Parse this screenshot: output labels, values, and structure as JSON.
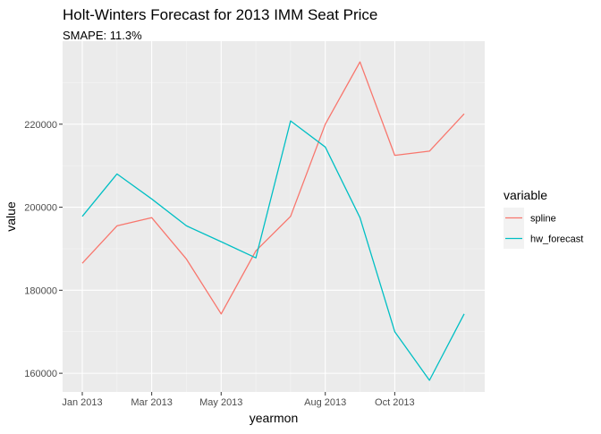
{
  "chart_data": {
    "type": "line",
    "title": "Holt-Winters Forecast for 2013 IMM Seat Price",
    "subtitle": "SMAPE: 11.3%",
    "xlabel": "yearmon",
    "ylabel": "value",
    "x": [
      "Jan 2013",
      "Feb 2013",
      "Mar 2013",
      "Apr 2013",
      "May 2013",
      "Jun 2013",
      "Jul 2013",
      "Aug 2013",
      "Sep 2013",
      "Oct 2013",
      "Nov 2013",
      "Dec 2013"
    ],
    "x_tick_labels": [
      "Jan 2013",
      "Mar 2013",
      "May 2013",
      "Aug 2013",
      "Oct 2013"
    ],
    "y_ticks": [
      160000,
      180000,
      200000,
      220000
    ],
    "y_tick_labels": [
      "160000",
      "180000",
      "200000",
      "220000"
    ],
    "ylim": [
      155500,
      240000
    ],
    "grid": true,
    "legend_title": "variable",
    "legend_position": "right",
    "series": [
      {
        "name": "spline",
        "color": "#F8766D",
        "values": [
          186500,
          195500,
          197500,
          187500,
          174300,
          189500,
          197800,
          220000,
          235000,
          212500,
          213500,
          222500
        ]
      },
      {
        "name": "hw_forecast",
        "color": "#00BFC4",
        "values": [
          197800,
          208000,
          202000,
          195500,
          191700,
          187800,
          220800,
          214500,
          197500,
          170000,
          158300,
          174300
        ]
      }
    ]
  }
}
